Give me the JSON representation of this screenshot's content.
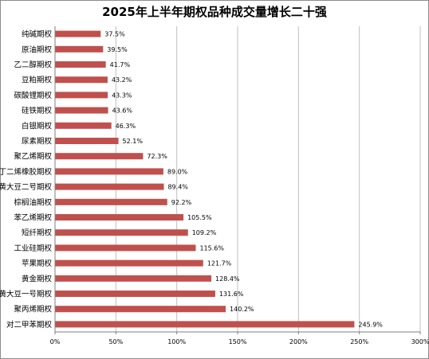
{
  "chart_data": {
    "type": "bar",
    "orientation": "horizontal",
    "title": "2025年上半年期权品种成交量增长二十强",
    "categories": [
      "纯碱期权",
      "原油期权",
      "乙二醇期权",
      "豆粕期权",
      "碳酸锂期权",
      "硅铁期权",
      "白银期权",
      "尿素期权",
      "聚乙烯期权",
      "丁二烯橡胶期权",
      "黄大豆二号期权",
      "棕榈油期权",
      "苯乙烯期权",
      "短纤期权",
      "工业硅期权",
      "苹果期权",
      "黄金期权",
      "黄大豆一号期权",
      "聚丙烯期权",
      "对二甲苯期权"
    ],
    "values": [
      37.5,
      39.5,
      41.7,
      43.2,
      43.3,
      43.6,
      46.3,
      52.1,
      72.3,
      89.0,
      89.4,
      92.2,
      105.5,
      109.2,
      115.6,
      121.7,
      128.4,
      131.6,
      140.2,
      245.9
    ],
    "value_labels": [
      "37.5%",
      "39.5%",
      "41.7%",
      "43.2%",
      "43.3%",
      "43.6%",
      "46.3%",
      "52.1%",
      "72.3%",
      "89.0%",
      "89.4%",
      "92.2%",
      "105.5%",
      "109.2%",
      "115.6%",
      "121.7%",
      "128.4%",
      "131.6%",
      "140.2%",
      "245.9%"
    ],
    "xlim": [
      0,
      300
    ],
    "xticks": [
      0,
      50,
      100,
      150,
      200,
      250,
      300
    ],
    "xtick_labels": [
      "0%",
      "50%",
      "100%",
      "150%",
      "200%",
      "250%",
      "300%"
    ],
    "xlabel": "",
    "ylabel": "",
    "grid": "vertical",
    "legend": "none",
    "bar_color": "#c0504d"
  }
}
